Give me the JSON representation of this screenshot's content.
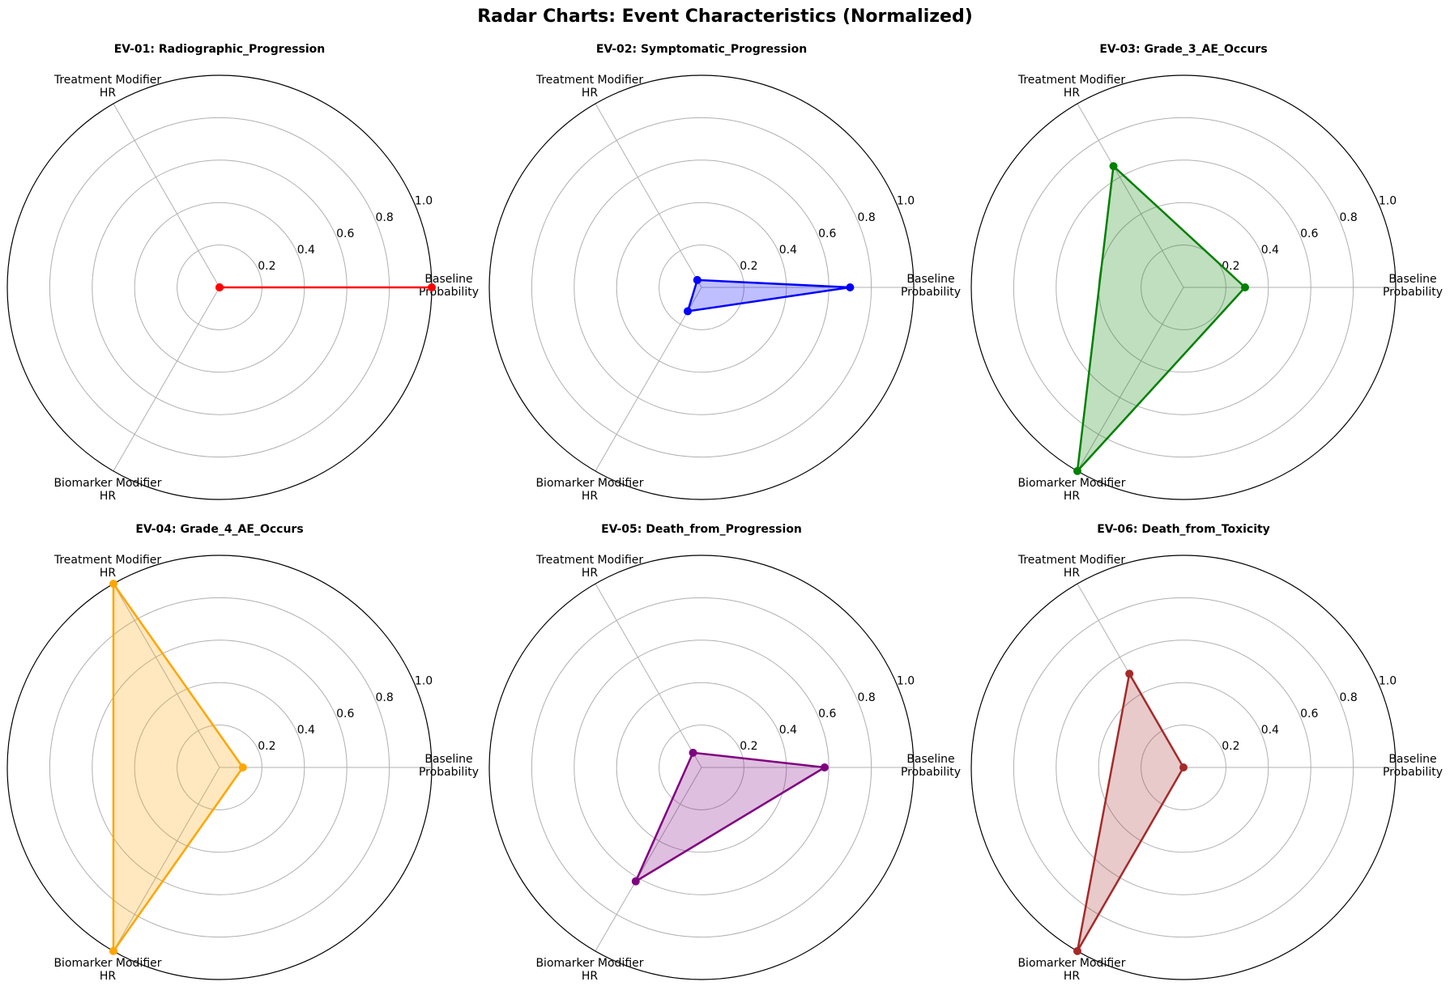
{
  "figure_title": "Radar Charts: Event Characteristics (Normalized)",
  "chart_data": [
    {
      "type": "radar",
      "title": "EV-01: Radiographic_Progression",
      "axes": [
        "Baseline Probability",
        "Treatment Modifier HR",
        "Biomarker Modifier HR"
      ],
      "values": [
        1.0,
        0.0,
        0.0
      ],
      "rlim": [
        0,
        1
      ],
      "rticks": [
        "0.2",
        "0.4",
        "0.6",
        "0.8",
        "1.0"
      ],
      "color": "#ff0000",
      "filled": false
    },
    {
      "type": "radar",
      "title": "EV-02: Symptomatic_Progression",
      "axes": [
        "Baseline Probability",
        "Treatment Modifier HR",
        "Biomarker Modifier HR"
      ],
      "values": [
        0.7,
        0.04,
        0.13
      ],
      "rlim": [
        0,
        1
      ],
      "rticks": [
        "0.2",
        "0.4",
        "0.6",
        "0.8",
        "1.0"
      ],
      "color": "#0000ff",
      "filled": true
    },
    {
      "type": "radar",
      "title": "EV-03: Grade_3_AE_Occurs",
      "axes": [
        "Baseline Probability",
        "Treatment Modifier HR",
        "Biomarker Modifier HR"
      ],
      "values": [
        0.29,
        0.66,
        1.0
      ],
      "rlim": [
        0,
        1
      ],
      "rticks": [
        "0.2",
        "0.4",
        "0.6",
        "0.8",
        "1.0"
      ],
      "color": "#008000",
      "filled": true
    },
    {
      "type": "radar",
      "title": "EV-04: Grade_4_AE_Occurs",
      "axes": [
        "Baseline Probability",
        "Treatment Modifier HR",
        "Biomarker Modifier HR"
      ],
      "values": [
        0.11,
        1.0,
        1.0
      ],
      "rlim": [
        0,
        1
      ],
      "rticks": [
        "0.2",
        "0.4",
        "0.6",
        "0.8",
        "1.0"
      ],
      "color": "#ffa500",
      "filled": true
    },
    {
      "type": "radar",
      "title": "EV-05: Death_from_Progression",
      "axes": [
        "Baseline Probability",
        "Treatment Modifier HR",
        "Biomarker Modifier HR"
      ],
      "values": [
        0.58,
        0.08,
        0.62
      ],
      "rlim": [
        0,
        1
      ],
      "rticks": [
        "0.2",
        "0.4",
        "0.6",
        "0.8",
        "1.0"
      ],
      "color": "#800080",
      "filled": true
    },
    {
      "type": "radar",
      "title": "EV-06: Death_from_Toxicity",
      "axes": [
        "Baseline Probability",
        "Treatment Modifier HR",
        "Biomarker Modifier HR"
      ],
      "values": [
        0.0,
        0.51,
        1.0
      ],
      "rlim": [
        0,
        1
      ],
      "rticks": [
        "0.2",
        "0.4",
        "0.6",
        "0.8",
        "1.0"
      ],
      "color": "#a52a2a",
      "filled": true
    }
  ]
}
